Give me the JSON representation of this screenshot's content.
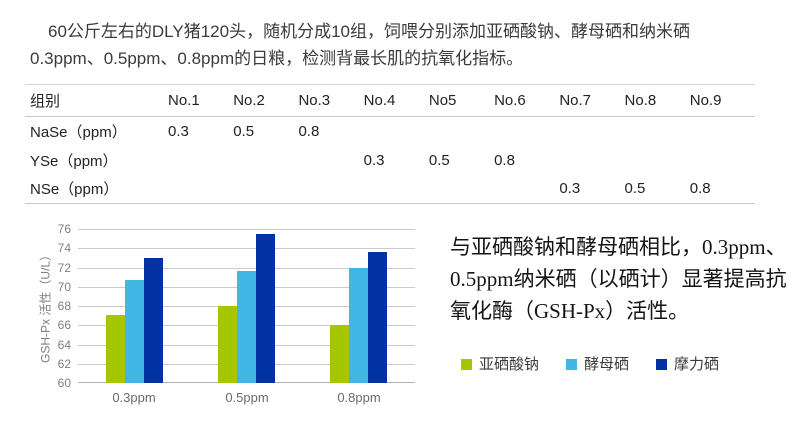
{
  "intro": {
    "lines": [
      "60公斤左右的DLY猪120头，随机分成10组，饲喂分别添加亚硒酸钠、酵母硒和纳米硒",
      "0.3ppm、0.5ppm、0.8ppm的日粮，检测背最长肌的抗氧化指标。"
    ]
  },
  "table": {
    "columns": [
      "组别",
      "No.1",
      "No.2",
      "No.3",
      "No.4",
      "No5",
      "No.6",
      "No.7",
      "No.8",
      "No.9"
    ],
    "rows": [
      {
        "label": "NaSe（ppm）",
        "values": [
          "0.3",
          "0.5",
          "0.8",
          "",
          "",
          "",
          "",
          "",
          ""
        ]
      },
      {
        "label": "YSe（ppm）",
        "values": [
          "",
          "",
          "",
          "0.3",
          "0.5",
          "0.8",
          "",
          "",
          ""
        ]
      },
      {
        "label": "NSe（ppm）",
        "values": [
          "",
          "",
          "",
          "",
          "",
          "",
          "0.3",
          "0.5",
          "0.8"
        ]
      }
    ]
  },
  "chart_data": {
    "type": "bar",
    "title": "",
    "xlabel": "",
    "ylabel": "GSH-Px 活性（U/L）",
    "categories": [
      "0.3ppm",
      "0.5ppm",
      "0.8ppm"
    ],
    "series": [
      {
        "name": "亚硒酸钠",
        "color": "#a5c702",
        "values": [
          67.1,
          68.0,
          66.0
        ]
      },
      {
        "name": "酵母硒",
        "color": "#41b7e6",
        "values": [
          70.7,
          71.6,
          72.0
        ]
      },
      {
        "name": "摩力硒",
        "color": "#0032a2",
        "values": [
          73.0,
          75.5,
          73.6
        ]
      }
    ],
    "ylim": [
      60,
      76
    ],
    "ytick_step": 2,
    "grid": true,
    "legend_position": "bottom-right"
  },
  "conclusion": {
    "lines": [
      "与亚硒酸钠和酵母硒相比，0.3ppm、",
      "0.5ppm纳米硒（以硒计）显著提高抗",
      "氧化酶（GSH-Px）活性。"
    ]
  }
}
